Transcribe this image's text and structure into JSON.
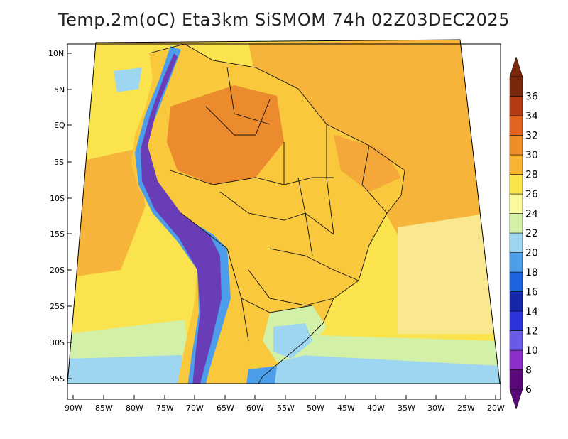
{
  "title": "Temp.2m(oC) Eta3km SiSMOM 74h 02Z03DEC2025",
  "lat_labels": [
    "10N",
    "5N",
    "EQ",
    "5S",
    "10S",
    "15S",
    "20S",
    "25S",
    "30S",
    "35S"
  ],
  "lon_labels": [
    "90W",
    "85W",
    "80W",
    "75W",
    "70W",
    "65W",
    "60W",
    "55W",
    "50W",
    "45W",
    "40W",
    "35W",
    "30W",
    "25W",
    "20W"
  ],
  "colorbar": {
    "labels": [
      "6",
      "8",
      "10",
      "12",
      "14",
      "16",
      "18",
      "20",
      "22",
      "24",
      "26",
      "28",
      "30",
      "32",
      "34",
      "36"
    ],
    "colors": [
      "#5a0a78",
      "#8b2fc9",
      "#6a5ae8",
      "#2a34d8",
      "#1428a8",
      "#1e64e0",
      "#4c9eea",
      "#9ed6f2",
      "#d2f0a8",
      "#fafa9c",
      "#fae64a",
      "#f8b430",
      "#f08c28",
      "#e0641e",
      "#b43c14",
      "#7a280c"
    ]
  },
  "regions": {
    "ocean_warm": "#f6b43a",
    "ocean_mild": "#fae34c",
    "land_warm": "#f4a83a",
    "land_mid": "#f9c83c",
    "land_hot": "#ec8a2e",
    "cool": "#9ed6f2",
    "cold": "#4c9eea",
    "andes": "#6a3db8"
  }
}
